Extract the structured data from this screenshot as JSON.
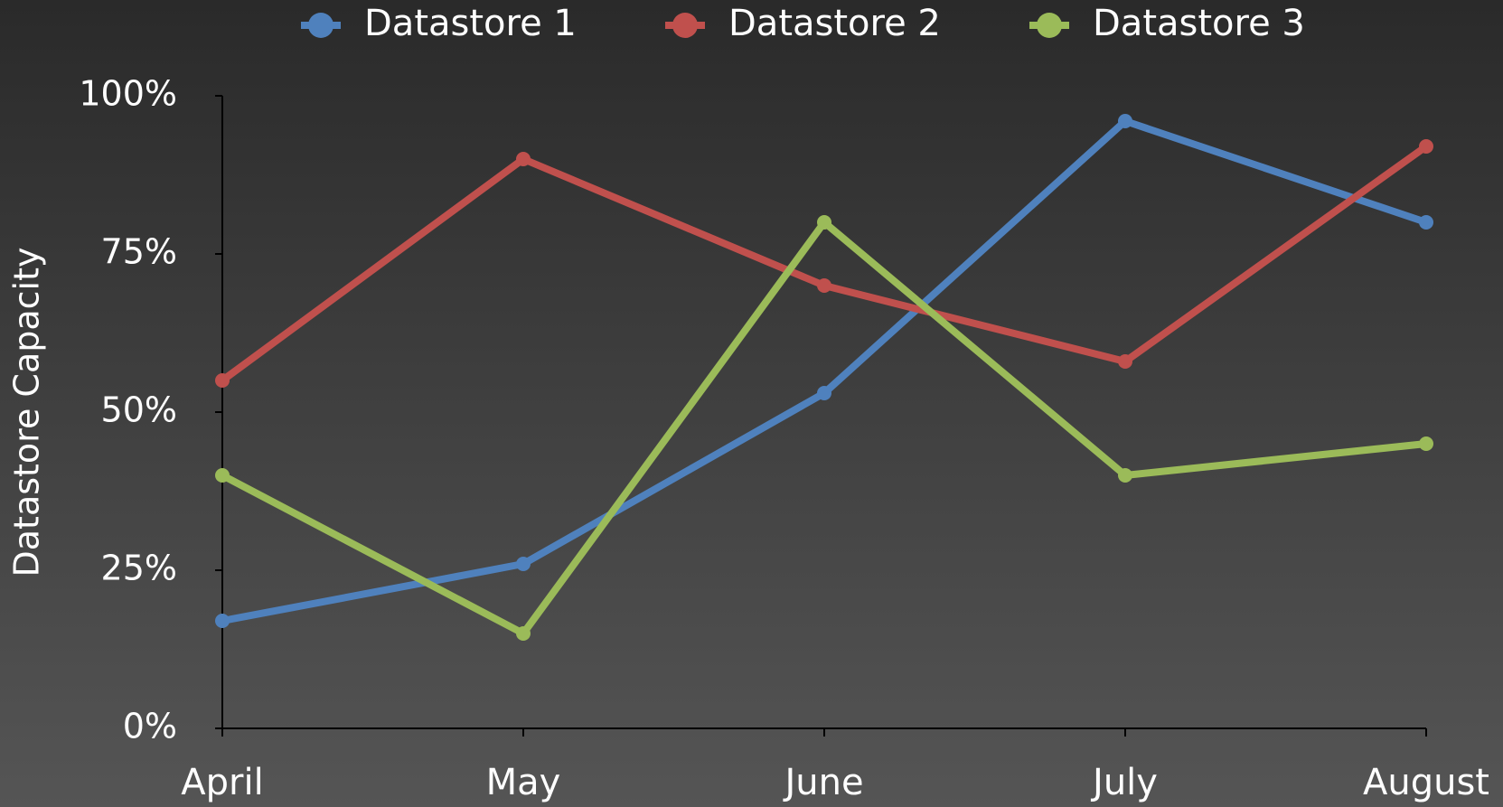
{
  "chart_data": {
    "type": "line",
    "y_label": "Datastore Capacity",
    "categories": [
      "April",
      "May",
      "June",
      "July",
      "August"
    ],
    "series": [
      {
        "name": "Datastore 1",
        "color": "#4f81bd",
        "values": [
          17,
          26,
          53,
          96,
          80
        ]
      },
      {
        "name": "Datastore 2",
        "color": "#c0504d",
        "values": [
          55,
          90,
          70,
          58,
          92
        ]
      },
      {
        "name": "Datastore 3",
        "color": "#9bbb59",
        "values": [
          40,
          15,
          80,
          40,
          45
        ]
      }
    ],
    "ylim": [
      0,
      100
    ],
    "yticks": [
      {
        "value": 0,
        "label": "0%"
      },
      {
        "value": 25,
        "label": "25%"
      },
      {
        "value": 50,
        "label": "50%"
      },
      {
        "value": 75,
        "label": "75%"
      },
      {
        "value": 100,
        "label": "100%"
      }
    ],
    "legend": "top"
  }
}
